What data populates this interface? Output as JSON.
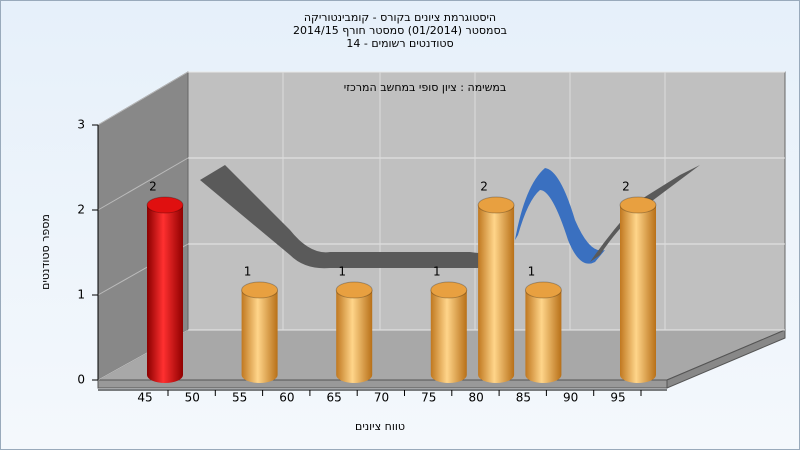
{
  "chart_data": {
    "type": "bar3d",
    "title": [
      "היסטוגרמת ציונים בקורס - קומבינטוריקה",
      "בסמסטר  (01/2014)  סמסטר חורף 2014/15",
      "סטודנטים רשומים - 14"
    ],
    "subtitle": "במשימה : ציון סופי במחשב המרכזי",
    "x_label": "טווח ציונים",
    "y_label": "מספר סטודנטים",
    "categories": [
      45,
      50,
      55,
      60,
      65,
      70,
      75,
      80,
      85,
      90,
      95
    ],
    "values": [
      2,
      0,
      1,
      0,
      1,
      0,
      1,
      2,
      1,
      0,
      2
    ],
    "colors": [
      "#e01010",
      "#e8a040",
      "#e8a040",
      "#e8a040",
      "#e8a040",
      "#e8a040",
      "#e8a040",
      "#e8a040",
      "#e8a040",
      "#e8a040",
      "#e8a040"
    ],
    "ylim": [
      0,
      3
    ],
    "yticks": [
      0,
      1,
      2,
      3
    ],
    "grid": true
  }
}
